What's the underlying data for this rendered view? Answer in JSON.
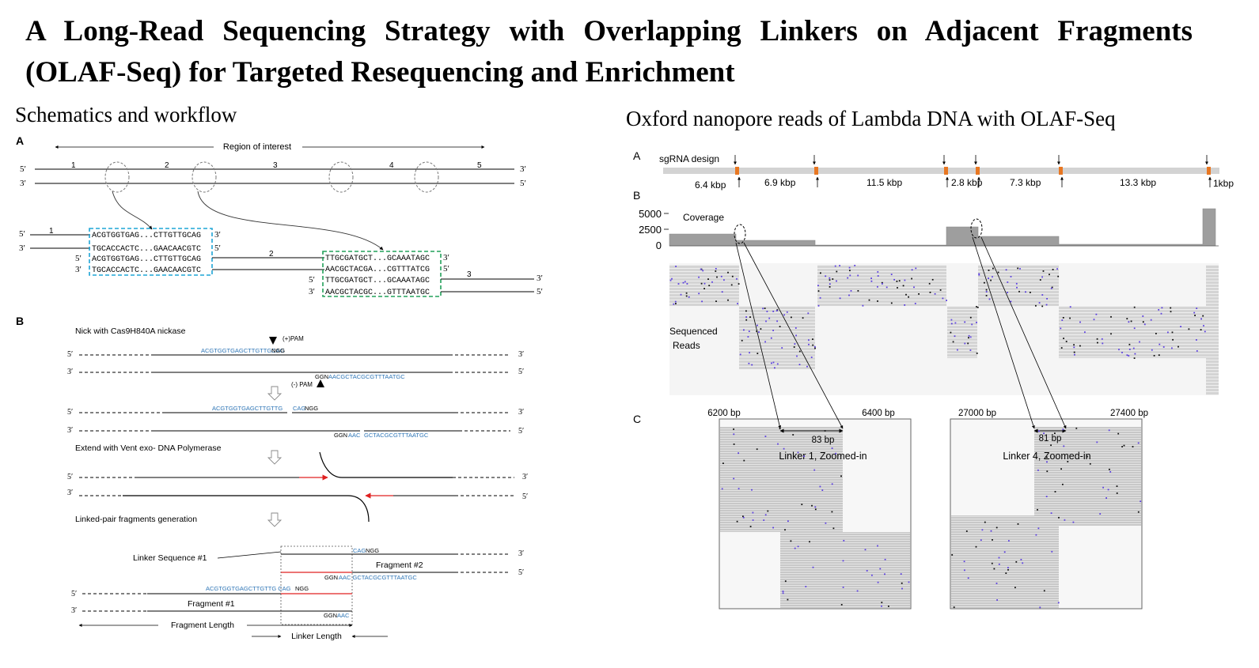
{
  "title": "A Long-Read Sequencing Strategy with Overlapping Linkers on Adjacent Fragments (OLAF-Seq) for Targeted Resequencing and Enrichment",
  "left_section": "Schematics and workflow",
  "right_section": "Oxford nanopore reads of Lambda DNA with OLAF-Seq",
  "panelA": {
    "letter": "A",
    "region_label": "Region of interest",
    "five": "5′",
    "three": "3′",
    "segments": [
      "1",
      "2",
      "3",
      "4",
      "5"
    ],
    "blue_box": [
      "ACGTGGTGAG...CTTGTTGCAG",
      "TGCACCACTC...GAACAACGTC",
      "ACGTGGTGAG...CTTGTTGCAG",
      "TGCACCACTC...GAACAACGTC"
    ],
    "green_box": [
      "TTGCGATGCT...GCAAATAGC",
      "AACGCTACGA...CGTTTATCG",
      "TTGCGATGCT...GCAAATAGC",
      "AACGCTACGC...GTTTAATGC"
    ]
  },
  "panelB": {
    "letter": "B",
    "step1": "Nick with Cas9H840A nickase",
    "plus_pam": "(+)PAM",
    "minus_pam": "(-) PAM",
    "seq_top_blue": "ACGTGGTGAGCTTGTTGCAG",
    "ngg": "NGG",
    "ggn": "GGN",
    "seq_bot_blue": "AACGCTACGCGTTTAATGC",
    "seq_top2_a": "ACGTGGTGAGCTTGTTG",
    "seq_top2_b": "CAG",
    "seq_bot2_a": "AAC",
    "seq_bot2_b": "GCTACGCGTTTAATGC",
    "step2": "Extend with Vent exo- DNA Polymerase",
    "step3": "Linked-pair fragments generation",
    "linker_seq": "Linker Sequence #1",
    "cag": "CAG",
    "fragment2": "Fragment #2",
    "bot_blue_full": "AAC GCTACGCGTTTAATGC",
    "top_blue_full": "ACGTGGTGAGCTTGTTG CAG",
    "fragment1": "Fragment #1",
    "aac": "AAC",
    "fragment_length": "Fragment Length",
    "linker_length": "Linker Length"
  },
  "right": {
    "A": "A",
    "B": "B",
    "C": "C",
    "sgrna": "sgRNA design",
    "kbp": [
      "6.4 kbp",
      "6.9 kbp",
      "11.5 kbp",
      "2.8 kbp",
      "7.3 kbp",
      "13.3 kbp",
      "1kbp"
    ],
    "coverage": "Coverage",
    "ticks": [
      "5000",
      "2500",
      "0"
    ],
    "coverage_ticks_values": [
      5000,
      2500,
      0
    ],
    "seq_reads": [
      "Sequenced",
      "Reads"
    ],
    "zoom1": {
      "left_bp": "6200 bp",
      "right_bp": "6400 bp",
      "size": "83 bp",
      "label": "Linker 1, Zoomed-in"
    },
    "zoom2": {
      "left_bp": "27000 bp",
      "right_bp": "27400 bp",
      "size": "81 bp",
      "label": "Linker 4, Zoomed-in"
    }
  },
  "colors": {
    "blue_seq": "#2e75b6",
    "cyan_box": "#1fa5d6",
    "green_box": "#22a05a",
    "red": "#e02020",
    "orange": "#e87722",
    "read_gray": "#cfcfcf",
    "mismatch": "#5b3fe0"
  }
}
